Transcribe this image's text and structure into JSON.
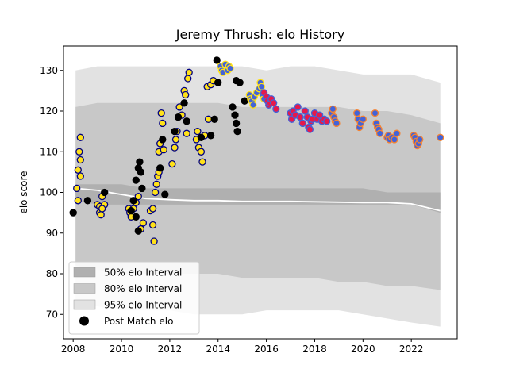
{
  "chart_data": {
    "type": "scatter",
    "title": "Jeremy Thrush: elo History",
    "xlabel": "",
    "ylabel": "elo score",
    "xlim": [
      2007.6,
      2023.9
    ],
    "ylim": [
      64,
      136
    ],
    "x_ticks": [
      2008,
      2010,
      2012,
      2014,
      2016,
      2018,
      2020,
      2022
    ],
    "y_ticks": [
      70,
      80,
      90,
      100,
      110,
      120,
      130
    ],
    "grid": false,
    "legend_position": "lower-left",
    "legend": [
      {
        "label": "50% elo Interval",
        "color": "#b0b0b0"
      },
      {
        "label": "80% elo Interval",
        "color": "#c8c8c8"
      },
      {
        "label": "95% elo Interval",
        "color": "#e2e2e2"
      },
      {
        "label": "Post Match elo",
        "color": "#000000"
      }
    ],
    "bands": {
      "x": [
        2008.1,
        2009.0,
        2010.0,
        2011.0,
        2012.0,
        2013.0,
        2014.0,
        2015.0,
        2016.0,
        2017.0,
        2018.0,
        2019.0,
        2020.0,
        2021.0,
        2022.0,
        2023.2
      ],
      "b95_hi": [
        130,
        131,
        131,
        131,
        131,
        131,
        131,
        131,
        130,
        131,
        131,
        130,
        129,
        129,
        129,
        127
      ],
      "b95_lo": [
        72,
        72,
        71,
        71,
        71,
        70,
        70,
        70,
        71,
        71,
        71,
        71,
        70,
        69,
        68,
        67
      ],
      "b80_hi": [
        121,
        122,
        122,
        122,
        122,
        122,
        122,
        121,
        121,
        121,
        121,
        121,
        120,
        120,
        119,
        117
      ],
      "b80_lo": [
        82,
        81,
        80,
        80,
        80,
        80,
        80,
        79,
        79,
        79,
        79,
        78,
        78,
        77,
        77,
        76
      ],
      "b50_hi": [
        102,
        102,
        102,
        101,
        101,
        101,
        101,
        101,
        101,
        101,
        101,
        101,
        101,
        100,
        100,
        100
      ],
      "b50_lo": [
        98,
        97,
        97,
        97,
        97,
        97,
        97,
        97,
        97,
        97,
        97,
        97,
        97,
        97,
        97,
        95
      ],
      "mean": [
        101.0,
        100.5,
        99.5,
        98.5,
        98.2,
        98.0,
        98.0,
        97.8,
        97.8,
        97.8,
        97.7,
        97.6,
        97.5,
        97.5,
        97.2,
        95.5
      ]
    },
    "series": [
      {
        "fill": "#ffe119",
        "edge": "#000080",
        "points": [
          [
            2008.15,
            101.0
          ],
          [
            2008.2,
            105.5
          ],
          [
            2008.25,
            110.0
          ],
          [
            2008.3,
            113.5
          ],
          [
            2008.3,
            108.0
          ],
          [
            2008.3,
            104.0
          ],
          [
            2008.2,
            98.0
          ],
          [
            2009.0,
            97.0
          ],
          [
            2009.1,
            96.5
          ],
          [
            2009.1,
            95.0
          ],
          [
            2009.15,
            94.5
          ],
          [
            2009.2,
            99.0
          ],
          [
            2009.3,
            97.0
          ],
          [
            2009.2,
            96.0
          ],
          [
            2010.3,
            96.0
          ],
          [
            2010.35,
            95.0
          ],
          [
            2010.4,
            94.0
          ],
          [
            2010.5,
            96.0
          ],
          [
            2010.6,
            97.5
          ],
          [
            2010.7,
            99.0
          ],
          [
            2010.9,
            92.5
          ],
          [
            2010.8,
            91.0
          ],
          [
            2011.2,
            95.5
          ],
          [
            2011.3,
            92.0
          ],
          [
            2011.35,
            88.0
          ],
          [
            2011.3,
            96.0
          ],
          [
            2011.4,
            100.0
          ],
          [
            2011.45,
            102.0
          ],
          [
            2011.5,
            104.0
          ],
          [
            2011.55,
            105.0
          ],
          [
            2011.55,
            110.0
          ],
          [
            2011.6,
            112.0
          ],
          [
            2011.65,
            119.5
          ],
          [
            2011.7,
            117.0
          ],
          [
            2011.75,
            110.5
          ],
          [
            2012.1,
            107.0
          ],
          [
            2012.2,
            111.0
          ],
          [
            2012.25,
            113.0
          ],
          [
            2012.3,
            115.0
          ],
          [
            2012.4,
            121.0
          ],
          [
            2012.5,
            119.0
          ],
          [
            2012.6,
            125.0
          ],
          [
            2012.65,
            124.0
          ],
          [
            2012.7,
            114.5
          ],
          [
            2012.75,
            128.0
          ],
          [
            2012.8,
            129.5
          ],
          [
            2013.1,
            113.0
          ],
          [
            2013.15,
            115.0
          ],
          [
            2013.2,
            111.0
          ],
          [
            2013.3,
            110.0
          ],
          [
            2013.35,
            107.5
          ],
          [
            2013.45,
            114.0
          ],
          [
            2013.55,
            126.0
          ],
          [
            2013.6,
            118.0
          ],
          [
            2013.7,
            126.5
          ],
          [
            2013.8,
            127.5
          ]
        ]
      },
      {
        "fill": "#000000",
        "edge": "#000000",
        "points": [
          [
            2008.0,
            95.0
          ],
          [
            2008.6,
            98.0
          ],
          [
            2009.3,
            100.0
          ],
          [
            2010.4,
            95.5
          ],
          [
            2010.5,
            98.0
          ],
          [
            2010.6,
            103.0
          ],
          [
            2010.7,
            106.0
          ],
          [
            2010.75,
            107.5
          ],
          [
            2010.8,
            105.0
          ],
          [
            2010.85,
            101.0
          ],
          [
            2010.6,
            94.0
          ],
          [
            2010.7,
            90.5
          ],
          [
            2011.6,
            106.0
          ],
          [
            2011.7,
            113.0
          ],
          [
            2011.8,
            99.5
          ],
          [
            2012.2,
            115.0
          ],
          [
            2012.35,
            118.5
          ],
          [
            2012.6,
            122.0
          ],
          [
            2012.7,
            117.5
          ],
          [
            2013.3,
            113.5
          ],
          [
            2013.7,
            114.0
          ],
          [
            2013.85,
            118.0
          ],
          [
            2013.95,
            132.5
          ],
          [
            2014.0,
            127.0
          ],
          [
            2014.6,
            121.0
          ],
          [
            2014.7,
            119.0
          ],
          [
            2014.75,
            117.0
          ],
          [
            2014.8,
            115.0
          ],
          [
            2014.75,
            127.5
          ],
          [
            2014.9,
            127.0
          ],
          [
            2015.1,
            122.5
          ]
        ]
      },
      {
        "fill": "#4363d8",
        "edge": "#ffe119",
        "points": [
          [
            2014.1,
            131.0
          ],
          [
            2014.15,
            130.0
          ],
          [
            2014.2,
            129.5
          ],
          [
            2014.3,
            131.5
          ],
          [
            2014.4,
            130.0
          ],
          [
            2014.45,
            131.0
          ],
          [
            2014.5,
            130.5
          ],
          [
            2015.3,
            124.0
          ],
          [
            2015.35,
            123.0
          ],
          [
            2015.4,
            122.5
          ],
          [
            2015.45,
            121.5
          ],
          [
            2015.5,
            123.5
          ],
          [
            2015.6,
            124.5
          ],
          [
            2015.7,
            125.5
          ],
          [
            2015.75,
            127.0
          ],
          [
            2015.8,
            126.0
          ],
          [
            2015.85,
            124.0
          ],
          [
            2015.9,
            123.0
          ]
        ]
      },
      {
        "fill": "#e6194b",
        "edge": "#4363d8",
        "points": [
          [
            2015.9,
            124.5
          ],
          [
            2016.0,
            123.5
          ],
          [
            2016.05,
            122.5
          ],
          [
            2016.1,
            121.5
          ],
          [
            2016.15,
            122.0
          ],
          [
            2016.2,
            123.0
          ],
          [
            2016.3,
            122.0
          ],
          [
            2016.4,
            120.5
          ],
          [
            2017.0,
            119.5
          ],
          [
            2017.05,
            118.0
          ],
          [
            2017.1,
            120.0
          ],
          [
            2017.2,
            119.0
          ],
          [
            2017.3,
            121.0
          ],
          [
            2017.4,
            118.5
          ],
          [
            2017.5,
            117.0
          ],
          [
            2017.6,
            120.0
          ],
          [
            2017.7,
            118.5
          ],
          [
            2017.75,
            116.0
          ],
          [
            2017.8,
            115.5
          ],
          [
            2017.85,
            117.5
          ],
          [
            2017.9,
            118.0
          ],
          [
            2018.0,
            119.5
          ],
          [
            2018.1,
            118.0
          ],
          [
            2018.2,
            119.0
          ],
          [
            2018.3,
            117.5
          ],
          [
            2018.4,
            118.0
          ],
          [
            2018.5,
            117.5
          ]
        ]
      },
      {
        "fill": "#4363d8",
        "edge": "#f58231",
        "points": [
          [
            2018.7,
            119.5
          ],
          [
            2018.75,
            120.5
          ],
          [
            2018.8,
            118.5
          ],
          [
            2018.85,
            117.5
          ],
          [
            2018.9,
            117.0
          ],
          [
            2019.75,
            119.5
          ],
          [
            2019.8,
            118.0
          ],
          [
            2019.85,
            116.0
          ],
          [
            2019.9,
            117.0
          ],
          [
            2020.0,
            118.0
          ],
          [
            2020.5,
            119.5
          ],
          [
            2020.55,
            117.0
          ],
          [
            2020.6,
            116.0
          ],
          [
            2020.65,
            115.5
          ],
          [
            2020.7,
            114.5
          ],
          [
            2021.0,
            113.5
          ],
          [
            2021.05,
            114.0
          ],
          [
            2021.1,
            113.0
          ],
          [
            2021.2,
            113.5
          ],
          [
            2021.3,
            113.0
          ],
          [
            2021.4,
            114.5
          ],
          [
            2022.1,
            114.0
          ],
          [
            2022.15,
            113.5
          ],
          [
            2022.2,
            112.5
          ],
          [
            2022.25,
            111.5
          ],
          [
            2022.3,
            112.0
          ],
          [
            2022.35,
            113.0
          ],
          [
            2023.2,
            113.5
          ]
        ]
      }
    ]
  }
}
